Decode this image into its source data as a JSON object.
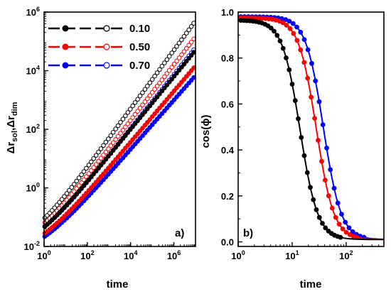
{
  "chart_data": [
    {
      "type": "line",
      "panel_label": "a)",
      "xlabel": "time",
      "ylabel_main": "Δr",
      "ylabel_sub1": "sol",
      "ylabel_sep": ",Δr",
      "ylabel_sub2": "dim",
      "xscale": "log",
      "yscale": "log",
      "xlim": [
        1,
        10000000
      ],
      "ylim": [
        0.01,
        1000000
      ],
      "x_ticks": [
        {
          "value": 1,
          "base": "10",
          "exp": "0"
        },
        {
          "value": 100,
          "base": "10",
          "exp": "2"
        },
        {
          "value": 10000,
          "base": "10",
          "exp": "4"
        },
        {
          "value": 1000000,
          "base": "10",
          "exp": "6"
        }
      ],
      "y_ticks": [
        {
          "value": 0.01,
          "base": "10",
          "exp": "-2"
        },
        {
          "value": 1,
          "base": "10",
          "exp": "0"
        },
        {
          "value": 100,
          "base": "10",
          "exp": "2"
        },
        {
          "value": 10000,
          "base": "10",
          "exp": "4"
        },
        {
          "value": 1000000,
          "base": "10",
          "exp": "6"
        }
      ],
      "legend_placement": "top-left",
      "series": [
        {
          "name": "0.10",
          "color": "#000000",
          "open_y0": 0.05,
          "open_slope": 1.0,
          "open_kick": 0.04,
          "filled_y0": 0.025,
          "filled_slope": 0.9,
          "filled_kick": 0.02
        },
        {
          "name": "0.50",
          "color": "#ff0000",
          "open_y0": 0.032,
          "open_slope": 0.95,
          "open_kick": 0.03,
          "filled_y0": 0.012,
          "filled_slope": 0.87,
          "filled_kick": 0.015
        },
        {
          "name": "0.70",
          "color": "#0000ff",
          "open_y0": 0.022,
          "open_slope": 0.92,
          "open_kick": 0.025,
          "filled_y0": 0.009,
          "filled_slope": 0.84,
          "filled_kick": 0.012
        }
      ]
    },
    {
      "type": "line",
      "panel_label": "b)",
      "xlabel": "time",
      "ylabel": "cos(ϕ)",
      "xscale": "log",
      "xlim": [
        1,
        500
      ],
      "ylim": [
        -0.02,
        1.0
      ],
      "x_ticks": [
        {
          "value": 1,
          "base": "10",
          "exp": "0"
        },
        {
          "value": 10,
          "base": "10",
          "exp": "1"
        },
        {
          "value": 100,
          "base": "10",
          "exp": "2"
        }
      ],
      "y_ticks": [
        "0.0",
        "0.2",
        "0.4",
        "0.6",
        "0.8",
        "1.0"
      ],
      "series": [
        {
          "name": "0.10",
          "color": "#000000",
          "half_time": 14,
          "width": 0.36,
          "start": 0.965,
          "floor": 0.01
        },
        {
          "name": "0.50",
          "color": "#ff0000",
          "half_time": 28,
          "width": 0.36,
          "start": 0.975,
          "floor": 0.01
        },
        {
          "name": "0.70",
          "color": "#0000ff",
          "half_time": 38,
          "width": 0.36,
          "start": 0.98,
          "floor": 0.01
        }
      ]
    }
  ]
}
